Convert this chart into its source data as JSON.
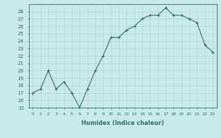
{
  "x": [
    0,
    1,
    2,
    3,
    4,
    5,
    6,
    7,
    8,
    9,
    10,
    11,
    12,
    13,
    14,
    15,
    16,
    17,
    18,
    19,
    20,
    21,
    22,
    23
  ],
  "y": [
    17.0,
    17.5,
    20.0,
    17.5,
    18.5,
    17.0,
    15.0,
    17.5,
    20.0,
    22.0,
    24.5,
    24.5,
    25.5,
    26.0,
    27.0,
    27.5,
    27.5,
    28.5,
    27.5,
    27.5,
    27.0,
    26.5,
    23.5,
    22.5
  ],
  "xlabel": "Humidex (Indice chaleur)",
  "ylim": [
    15,
    29
  ],
  "xlim": [
    -0.5,
    23.5
  ],
  "yticks": [
    15,
    16,
    17,
    18,
    19,
    20,
    21,
    22,
    23,
    24,
    25,
    26,
    27,
    28
  ],
  "xticks": [
    0,
    1,
    2,
    3,
    4,
    5,
    6,
    7,
    8,
    9,
    10,
    11,
    12,
    13,
    14,
    15,
    16,
    17,
    18,
    19,
    20,
    21,
    22,
    23
  ],
  "line_color": "#2e6b5e",
  "marker": "+",
  "bg_color": "#c8eaea",
  "grid_color": "#b0cccc"
}
